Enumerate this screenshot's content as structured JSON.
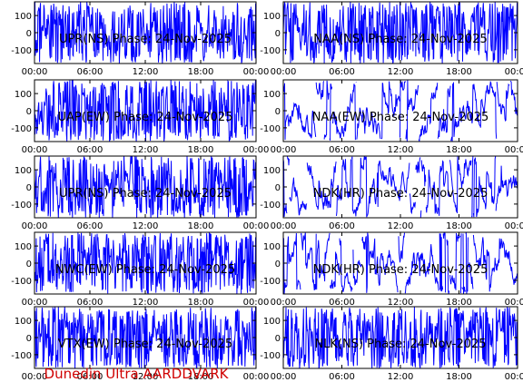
{
  "footer": {
    "text": "Dunedin Ultra AARDDVARK",
    "color": "#d00000"
  },
  "colors": {
    "trace": "#0000ff",
    "frame": "#000000",
    "background": "#ffffff"
  },
  "chart_data": [
    {
      "type": "line",
      "title": "UPR(NS) Phase: 24-Nov-2025",
      "xlabel": "",
      "ylabel": "",
      "x_ticks": [
        "00:00",
        "06:00",
        "12:00",
        "18:00",
        "00:00"
      ],
      "xlim_hours": [
        0,
        24
      ],
      "y_ticks": [
        -100,
        0,
        100
      ],
      "ylim": [
        -180,
        180
      ],
      "grid": false,
      "series": [
        {
          "color": "#0000ff",
          "pattern": "dense phase trace, full scale throughout, densest 06:00–14:00"
        }
      ]
    },
    {
      "type": "line",
      "title": "NAA(NS) Phase: 24-Nov-2025",
      "xlabel": "",
      "ylabel": "",
      "x_ticks": [
        "00:00",
        "06:00",
        "12:00",
        "18:00",
        "00:00"
      ],
      "xlim_hours": [
        0,
        24
      ],
      "y_ticks": [
        -100,
        0,
        100
      ],
      "ylim": [
        -180,
        180
      ],
      "grid": false,
      "series": [
        {
          "color": "#0000ff",
          "pattern": "dense phase trace, full scale throughout"
        }
      ]
    },
    {
      "type": "line",
      "title": "UAP(EW) Phase: 24-Nov-2025",
      "xlabel": "",
      "ylabel": "",
      "x_ticks": [
        "00:00",
        "06:00",
        "12:00",
        "18:00",
        "00:00"
      ],
      "xlim_hours": [
        0,
        24
      ],
      "y_ticks": [
        -100,
        0,
        100
      ],
      "ylim": [
        -180,
        180
      ],
      "grid": false,
      "series": [
        {
          "color": "#0000ff",
          "pattern": "dense phase trace, full scale throughout"
        }
      ]
    },
    {
      "type": "line",
      "title": "NAA(EW) Phase: 24-Nov-2025",
      "xlabel": "",
      "ylabel": "",
      "x_ticks": [
        "00:00",
        "06:00",
        "12:00",
        "18:00",
        "00:00"
      ],
      "xlim_hours": [
        0,
        24
      ],
      "y_ticks": [
        -100,
        0,
        100
      ],
      "ylim": [
        -180,
        180
      ],
      "grid": false,
      "series": [
        {
          "color": "#0000ff",
          "pattern": "phase trace with sparser wraps and visible gaps"
        }
      ]
    },
    {
      "type": "line",
      "title": "UPR(NS) Phase: 24-Nov-2025",
      "xlabel": "",
      "ylabel": "",
      "x_ticks": [
        "00:00",
        "06:00",
        "12:00",
        "18:00",
        "00:00"
      ],
      "xlim_hours": [
        0,
        24
      ],
      "y_ticks": [
        -100,
        0,
        100
      ],
      "ylim": [
        -180,
        180
      ],
      "grid": false,
      "series": [
        {
          "color": "#0000ff",
          "pattern": "dense phase trace, slow sweep near 22:00"
        }
      ]
    },
    {
      "type": "line",
      "title": "NDK(HR) Phase: 24-Nov-2025",
      "xlabel": "",
      "ylabel": "",
      "x_ticks": [
        "00:00",
        "06:00",
        "12:00",
        "18:00",
        "00:00"
      ],
      "xlim_hours": [
        0,
        24
      ],
      "y_ticks": [
        -100,
        0,
        100
      ],
      "ylim": [
        -180,
        180
      ],
      "grid": false,
      "series": [
        {
          "color": "#0000ff",
          "pattern": "phase trace with sparser wraps and visible gaps"
        }
      ]
    },
    {
      "type": "line",
      "title": "NWC(EW) Phase: 24-Nov-2025",
      "xlabel": "",
      "ylabel": "",
      "x_ticks": [
        "00:00",
        "06:00",
        "12:00",
        "18:00",
        "00:00"
      ],
      "xlim_hours": [
        0,
        24
      ],
      "y_ticks": [
        -100,
        0,
        100
      ],
      "ylim": [
        -180,
        180
      ],
      "grid": false,
      "series": [
        {
          "color": "#0000ff",
          "pattern": "dense phase trace, full scale throughout"
        }
      ]
    },
    {
      "type": "line",
      "title": "NDK(HR) Phase: 24-Nov-2025",
      "xlabel": "",
      "ylabel": "",
      "x_ticks": [
        "00:00",
        "06:00",
        "12:00",
        "18:00",
        "00:00"
      ],
      "xlim_hours": [
        0,
        24
      ],
      "y_ticks": [
        -100,
        0,
        100
      ],
      "ylim": [
        -180,
        180
      ],
      "grid": false,
      "series": [
        {
          "color": "#0000ff",
          "pattern": "phase trace with sparser wraps and visible gaps"
        }
      ]
    },
    {
      "type": "line",
      "title": "VTX(EW) Phase: 24-Nov-2025",
      "xlabel": "",
      "ylabel": "",
      "x_ticks": [
        "00:00",
        "06:00",
        "12:00",
        "18:00",
        "00:00"
      ],
      "xlim_hours": [
        0,
        24
      ],
      "y_ticks": [
        -100,
        0,
        100
      ],
      "ylim": [
        -180,
        180
      ],
      "grid": false,
      "series": [
        {
          "color": "#0000ff",
          "pattern": "dense phase trace, full scale throughout"
        }
      ]
    },
    {
      "type": "line",
      "title": "NLK(NS) Phase: 24-Nov-2025",
      "xlabel": "",
      "ylabel": "",
      "x_ticks": [
        "00:00",
        "06:00",
        "12:00",
        "18:00",
        "00:00"
      ],
      "xlim_hours": [
        0,
        24
      ],
      "y_ticks": [
        -100,
        0,
        100
      ],
      "ylim": [
        -180,
        180
      ],
      "grid": false,
      "series": [
        {
          "color": "#0000ff",
          "pattern": "dense phase trace, full scale throughout"
        }
      ]
    }
  ]
}
